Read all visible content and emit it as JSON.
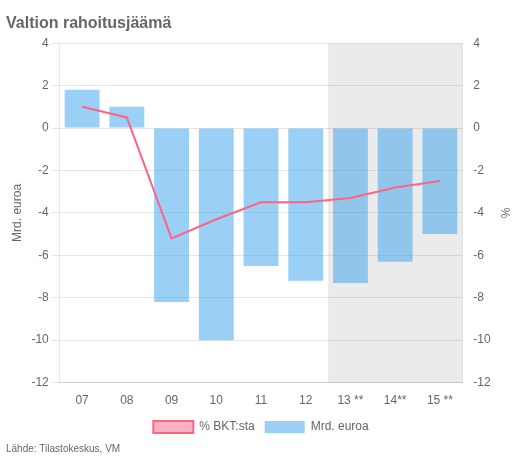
{
  "chart_data": {
    "type": "bar",
    "title": "Valtion rahoitusjäämä",
    "categories": [
      "07",
      "08",
      "09",
      "10",
      "11",
      "12",
      "13 **",
      "14**",
      "15 **"
    ],
    "series": [
      {
        "name": "Mrd. euroa",
        "type": "bar",
        "values": [
          1.8,
          1.0,
          -8.2,
          -10.0,
          -6.5,
          -7.2,
          -7.3,
          -6.3,
          -5.0
        ]
      },
      {
        "name": "% BKT:sta",
        "type": "line",
        "axis": "y2",
        "values": [
          1.0,
          0.5,
          -5.2,
          -4.3,
          -3.5,
          -3.5,
          -3.3,
          -2.8,
          -2.5
        ]
      }
    ],
    "ylabel": "Mrd. euroa",
    "y2label": "%",
    "ylim": [
      -12,
      4
    ],
    "yticks": [
      -12,
      -10,
      -8,
      -6,
      -4,
      -2,
      0,
      2,
      4
    ],
    "y2lim": [
      -12,
      4
    ],
    "y2ticks": [
      -12,
      -10,
      -8,
      -6,
      -4,
      -2,
      0,
      2,
      4
    ],
    "forecast_from": "13 **",
    "source": "Lähde: Tilastokeskus, VM",
    "grid": true,
    "legend": "bottom"
  }
}
